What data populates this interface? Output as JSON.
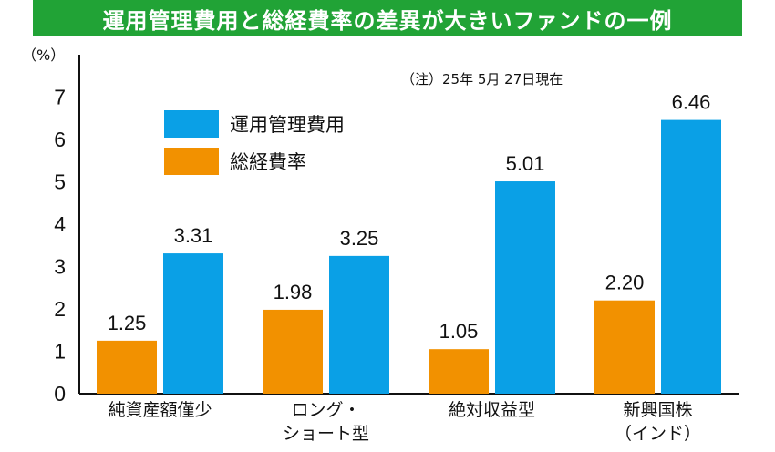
{
  "header": {
    "title": "運用管理費用と総経費率の差異が大きいファンドの一例"
  },
  "note": "（注）25年 5月 27日現在",
  "colors": {
    "title_bg": "#21a336",
    "mgmt": "#0aa0e6",
    "ter": "#f29100"
  },
  "chart_data": {
    "type": "bar",
    "title": "運用管理費用と総経費率の差異が大きいファンドの一例",
    "unit_label": "（%）",
    "ylim": [
      0,
      7
    ],
    "yticks": [
      "0",
      "1",
      "2",
      "3",
      "4",
      "5",
      "6",
      "7"
    ],
    "categories": [
      [
        "純資産額僅少"
      ],
      [
        "ロング・",
        "ショート型"
      ],
      [
        "絶対収益型"
      ],
      [
        "新興国株",
        "（インド）"
      ]
    ],
    "series": [
      {
        "name": "総経費率",
        "color": "#f29100",
        "values": [
          1.25,
          1.98,
          1.05,
          2.2
        ],
        "labels": [
          "1.25",
          "1.98",
          "1.05",
          "2.20"
        ]
      },
      {
        "name": "運用管理費用",
        "color": "#0aa0e6",
        "values": [
          3.31,
          3.25,
          5.01,
          6.46
        ],
        "labels": [
          "3.31",
          "3.25",
          "5.01",
          "6.46"
        ]
      }
    ],
    "legend_order": [
      "運用管理費用",
      "総経費率"
    ],
    "legend_position": "top-left",
    "grid": false
  }
}
